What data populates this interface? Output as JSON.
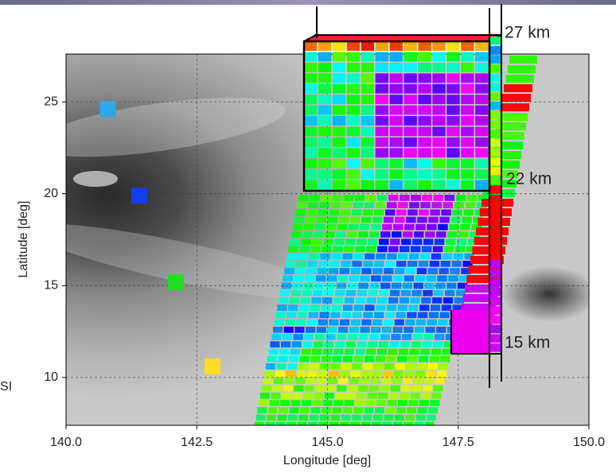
{
  "chart_data": {
    "type": "scatter",
    "x_label": "Longitude [deg]",
    "y_label": "Latitude [deg]",
    "xlim": [
      140,
      150
    ],
    "ylim": [
      7.4,
      27.6
    ],
    "xticks": [
      {
        "value": 140,
        "label": "140.0"
      },
      {
        "value": 142.5,
        "label": "142.5"
      },
      {
        "value": 145,
        "label": "145.0"
      },
      {
        "value": 147.5,
        "label": "147.5"
      },
      {
        "value": 150,
        "label": "150.0"
      }
    ],
    "yticks": [
      10,
      15,
      20,
      25
    ],
    "grid": true,
    "series": [
      {
        "x": [
          140.8,
          141.4,
          142.1,
          142.8
        ],
        "values": [
          24.6,
          19.9,
          15.2,
          10.6
        ],
        "colors": [
          "#2aa8ee",
          "#1040ee",
          "#22dd22",
          "#ffdd22"
        ]
      }
    ],
    "annotations": [
      "27 km",
      "22 km",
      "15 km",
      "SI"
    ]
  }
}
